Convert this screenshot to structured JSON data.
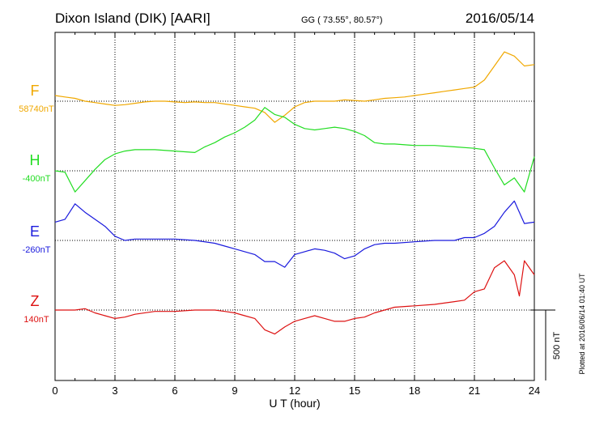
{
  "header": {
    "station": "Dixon Island (DIK)  [AARI]",
    "coords": "GG ( 73.55°,  80.57°)",
    "date": "2016/05/14"
  },
  "footer": {
    "plotted": "Plotted at 2016/06/14 01:40 UT"
  },
  "chart_data": {
    "type": "line",
    "xlabel": "U T (hour)",
    "xlim": [
      0,
      24
    ],
    "xticks": [
      "0",
      "3",
      "6",
      "9",
      "12",
      "15",
      "18",
      "21",
      "24"
    ],
    "scale_label": "500 nT",
    "grid": true,
    "series": [
      {
        "name": "F",
        "baseline_label": "58740nT",
        "color": "#f0a800",
        "x": [
          0,
          0.5,
          1,
          1.5,
          2,
          2.5,
          3,
          3.5,
          4,
          4.5,
          5,
          5.5,
          6,
          6.5,
          7,
          7.5,
          8,
          8.5,
          9,
          9.5,
          10,
          10.5,
          11,
          11.5,
          12,
          12.5,
          13,
          13.5,
          14,
          14.5,
          15,
          15.5,
          16,
          16.5,
          17,
          17.5,
          18,
          18.5,
          19,
          19.5,
          20,
          20.5,
          21,
          21.5,
          22,
          22.5,
          23,
          23.5,
          24
        ],
        "y": [
          40,
          30,
          20,
          0,
          -10,
          -20,
          -30,
          -25,
          -15,
          -5,
          0,
          0,
          -5,
          -10,
          -5,
          -10,
          -10,
          -20,
          -30,
          -40,
          -50,
          -80,
          -150,
          -100,
          -40,
          -10,
          0,
          0,
          0,
          10,
          5,
          0,
          10,
          20,
          25,
          30,
          40,
          50,
          60,
          70,
          80,
          90,
          100,
          150,
          250,
          350,
          320,
          250,
          260
        ]
      },
      {
        "name": "H",
        "baseline_label": "-400nT",
        "color": "#22dd22",
        "x": [
          0,
          0.5,
          1,
          1.5,
          2,
          2.5,
          3,
          3.5,
          4,
          5,
          6,
          7,
          7.5,
          8,
          8.5,
          9,
          9.5,
          10,
          10.5,
          11,
          11.5,
          12,
          12.5,
          13,
          13.5,
          14,
          14.5,
          15,
          15.5,
          16,
          16.5,
          17,
          18,
          19,
          20,
          21,
          21.5,
          22,
          22.5,
          23,
          23.5,
          24
        ],
        "y": [
          0,
          -10,
          -150,
          -70,
          10,
          80,
          120,
          140,
          150,
          150,
          140,
          130,
          170,
          200,
          240,
          270,
          310,
          360,
          450,
          400,
          380,
          330,
          300,
          290,
          300,
          310,
          300,
          280,
          250,
          200,
          190,
          190,
          180,
          180,
          170,
          160,
          150,
          20,
          -100,
          -50,
          -150,
          100
        ]
      },
      {
        "name": "E",
        "baseline_label": "-260nT",
        "color": "#1a1add",
        "x": [
          0,
          0.5,
          1,
          1.5,
          2,
          2.5,
          3,
          3.5,
          4,
          5,
          6,
          7,
          8,
          8.5,
          9,
          9.5,
          10,
          10.5,
          11,
          11.5,
          12,
          12.5,
          13,
          13.5,
          14,
          14.5,
          15,
          15.5,
          16,
          16.5,
          17,
          18,
          19,
          20,
          20.5,
          21,
          21.5,
          22,
          22.5,
          23,
          23.5,
          24
        ],
        "y": [
          130,
          150,
          260,
          200,
          150,
          100,
          30,
          0,
          10,
          10,
          10,
          0,
          -20,
          -40,
          -60,
          -80,
          -100,
          -150,
          -150,
          -190,
          -100,
          -80,
          -60,
          -70,
          -90,
          -130,
          -110,
          -60,
          -30,
          -20,
          -20,
          -10,
          0,
          0,
          20,
          20,
          50,
          100,
          200,
          280,
          120,
          130
        ]
      },
      {
        "name": "Z",
        "baseline_label": "140nT",
        "color": "#dd1111",
        "x": [
          0,
          0.5,
          1,
          1.5,
          2,
          2.5,
          3,
          3.5,
          4,
          5,
          6,
          7,
          8,
          8.5,
          9,
          9.5,
          10,
          10.5,
          11,
          11.5,
          12,
          12.5,
          13,
          13.5,
          14,
          14.5,
          15,
          15.5,
          16,
          16.5,
          17,
          18,
          19,
          20,
          20.5,
          21,
          21.5,
          22,
          22.5,
          23,
          23.25,
          23.5,
          24
        ],
        "y": [
          0,
          0,
          0,
          10,
          -20,
          -40,
          -60,
          -50,
          -30,
          -10,
          -10,
          0,
          0,
          -10,
          -20,
          -40,
          -60,
          -140,
          -170,
          -120,
          -80,
          -60,
          -40,
          -60,
          -80,
          -80,
          -60,
          -50,
          -20,
          0,
          20,
          30,
          40,
          60,
          70,
          130,
          150,
          300,
          350,
          250,
          100,
          350,
          250
        ]
      }
    ]
  }
}
